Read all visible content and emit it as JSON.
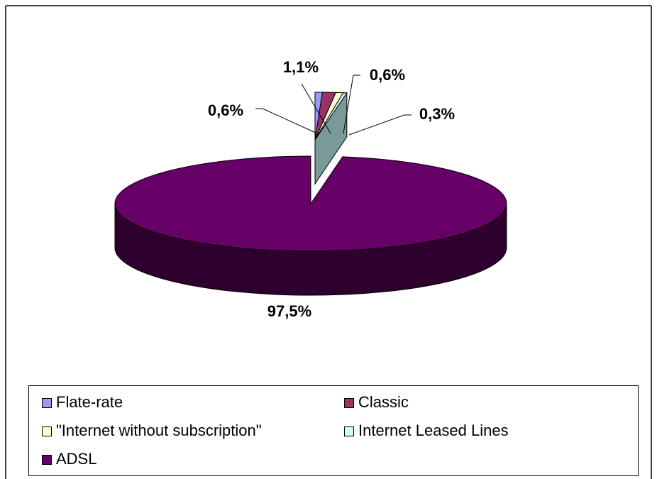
{
  "chart_data": {
    "type": "pie",
    "three_d": true,
    "slices": [
      {
        "label": "Flate-rate",
        "value": 0.6,
        "data_label": "0,6%",
        "color": "#9999ff",
        "exploded": true
      },
      {
        "label": "Classic",
        "value": 1.1,
        "data_label": "1,1%",
        "color": "#993366",
        "exploded": true
      },
      {
        "label": "\"Internet without subscription\"",
        "value": 0.6,
        "data_label": "0,6%",
        "color": "#ffffcc",
        "exploded": true
      },
      {
        "label": "Internet Leased Lines",
        "value": 0.3,
        "data_label": "0,3%",
        "color": "#ccffff",
        "exploded": true
      },
      {
        "label": "ADSL",
        "value": 97.5,
        "data_label": "97,5%",
        "color": "#660066",
        "exploded": false
      }
    ],
    "legend_position": "bottom",
    "legend": [
      {
        "label": "Flate-rate",
        "color": "#9999ff"
      },
      {
        "label": "Classic",
        "color": "#993366"
      },
      {
        "label": "\"Internet without subscription\"",
        "color": "#ffffcc"
      },
      {
        "label": "Internet Leased Lines",
        "color": "#ccffff"
      },
      {
        "label": "ADSL",
        "color": "#660066"
      }
    ]
  }
}
